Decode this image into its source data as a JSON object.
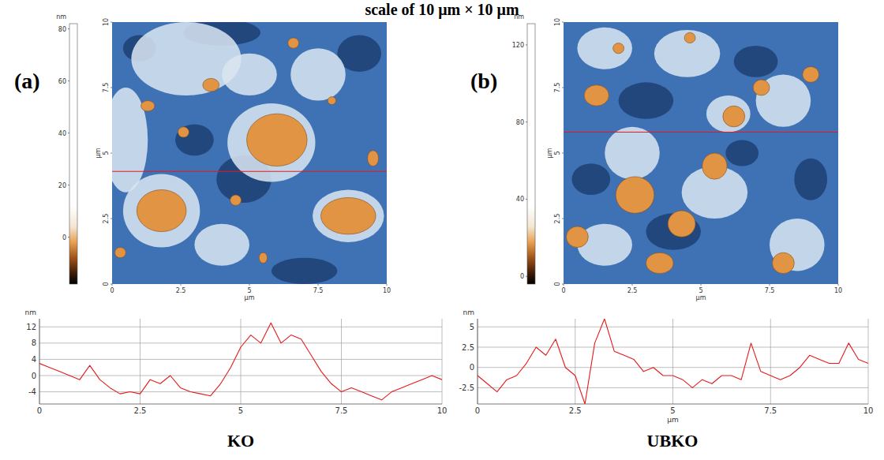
{
  "title": "scale of 10 μm × 10 μm",
  "chart_data": [
    {
      "type": "heatmap",
      "label": "(a)",
      "x_label": "μm",
      "y_label": "μm",
      "xlim": [
        0,
        10
      ],
      "ylim": [
        0,
        10
      ],
      "xticks": [
        0,
        2.5,
        5,
        7.5,
        10
      ],
      "yticks": [
        0,
        2.5,
        5,
        7.5,
        10
      ],
      "colorbar": {
        "label": "nm",
        "range": [
          -18,
          82
        ],
        "ticks": [
          0,
          20,
          40,
          60,
          80
        ]
      },
      "profile_line_y": 4.3
    },
    {
      "type": "line",
      "y_label": "nm",
      "caption": "KO",
      "color": "#e41a1c",
      "grid": true,
      "x": [
        0,
        0.25,
        0.5,
        0.75,
        1,
        1.25,
        1.5,
        1.75,
        2,
        2.25,
        2.5,
        2.75,
        3,
        3.25,
        3.5,
        3.75,
        4,
        4.25,
        4.5,
        4.75,
        5,
        5.25,
        5.5,
        5.75,
        6,
        6.25,
        6.5,
        6.75,
        7,
        7.25,
        7.5,
        7.75,
        8,
        8.25,
        8.5,
        8.75,
        9,
        9.25,
        9.5,
        9.75,
        10
      ],
      "values": [
        3,
        2,
        1,
        0,
        -1,
        2.5,
        -1,
        -3,
        -4.5,
        -4,
        -4.5,
        -1,
        -2,
        0,
        -3,
        -4,
        -4.5,
        -5,
        -2,
        2,
        7,
        10,
        8,
        13,
        8,
        10,
        9,
        5,
        1,
        -2,
        -4,
        -3,
        -4,
        -5,
        -6,
        -4,
        -3,
        -2,
        -1,
        0,
        -1
      ],
      "xlim": [
        0,
        10
      ],
      "ylim": [
        -7,
        14
      ],
      "xticks": [
        0,
        2.5,
        5,
        7.5,
        10
      ],
      "yticks": [
        -4,
        0,
        4,
        8,
        12
      ]
    },
    {
      "type": "heatmap",
      "label": "(b)",
      "x_label": "μm",
      "y_label": "μm",
      "xlim": [
        0,
        10
      ],
      "ylim": [
        0,
        10
      ],
      "xticks": [
        0,
        2.5,
        5,
        7.5,
        10
      ],
      "yticks": [
        0,
        2.5,
        5,
        7.5,
        10
      ],
      "colorbar": {
        "label": "nm",
        "range": [
          -4,
          131
        ],
        "ticks": [
          0,
          40,
          80,
          120
        ]
      },
      "profile_line_y": 5.8
    },
    {
      "type": "line",
      "y_label": "nm",
      "x_label": "μm",
      "caption": "UBKO",
      "color": "#e41a1c",
      "grid": true,
      "x": [
        0,
        0.25,
        0.5,
        0.75,
        1,
        1.25,
        1.5,
        1.75,
        2,
        2.25,
        2.5,
        2.75,
        3,
        3.25,
        3.5,
        3.75,
        4,
        4.25,
        4.5,
        4.75,
        5,
        5.25,
        5.5,
        5.75,
        6,
        6.25,
        6.5,
        6.75,
        7,
        7.25,
        7.5,
        7.75,
        8,
        8.25,
        8.5,
        8.75,
        9,
        9.25,
        9.5,
        9.75,
        10
      ],
      "values": [
        -1,
        -2,
        -3,
        -1.5,
        -1,
        0.5,
        2.5,
        1.5,
        3.5,
        0,
        -1,
        -4.5,
        3,
        6,
        2,
        1.5,
        1,
        -0.5,
        0,
        -1,
        -1,
        -1.5,
        -2.5,
        -1.5,
        -2,
        -1,
        -1,
        -1.5,
        3,
        -0.5,
        -1,
        -1.5,
        -1,
        0,
        1.5,
        1,
        0.5,
        0.5,
        3,
        1,
        0.5
      ],
      "xlim": [
        0,
        10
      ],
      "ylim": [
        -4.5,
        6
      ],
      "xticks": [
        0,
        2.5,
        5,
        7.5,
        10
      ],
      "yticks": [
        -2.5,
        0,
        2.5,
        5
      ]
    }
  ]
}
